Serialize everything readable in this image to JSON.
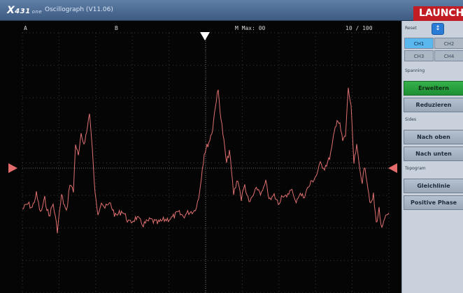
{
  "header": {
    "logo_text": "X",
    "logo_sub": "431",
    "logo_mini": "one",
    "title": "Oscillograph (V11.06)",
    "brand": "LAUNCH"
  },
  "scope": {
    "left_label": "A",
    "cursor_label": "B",
    "max_readout": "M Max: 00",
    "scale_readout": "10 / 100"
  },
  "panel": {
    "reset_label": "Reset",
    "reset_icon": "arrow-icon",
    "channels": [
      "CH1",
      "CH2",
      "CH3",
      "CH4"
    ],
    "active_channel": "CH1",
    "spanning_label": "Spanning",
    "spanning_buttons": [
      "Erweitern",
      "Reduzieren"
    ],
    "active_spanning": "Erweitern",
    "sides_label": "Sides",
    "sides_buttons": [
      "Nach oben",
      "Nach unten"
    ],
    "topogram_label": "Topogram",
    "topogram_buttons": [
      "Gleichlinie",
      "Positive Phase"
    ]
  },
  "colors": {
    "waveform": "#e0706f",
    "marker": "#e36b6b",
    "trigger": "#ffffff",
    "brand": "#c21c24",
    "active_button": "#2aa442",
    "active_channel": "#5ab8ee"
  }
}
